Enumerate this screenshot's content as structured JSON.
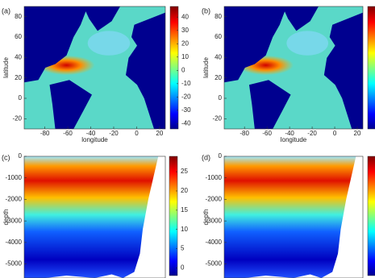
{
  "chart_data": [
    {
      "type": "heatmap",
      "label": "(a)",
      "xlabel": "longitude",
      "ylabel": "latitude",
      "xlim": [
        -98,
        25
      ],
      "xticks": [
        -80,
        -60,
        -40,
        -20,
        0,
        20
      ],
      "ylim": [
        -30,
        90
      ],
      "yticks": [
        80,
        60,
        40,
        20,
        0,
        -20
      ],
      "colorbar": {
        "lim": [
          -44,
          48
        ],
        "ticks": [
          40,
          30,
          20,
          10,
          0,
          -10,
          -20,
          -30,
          -40
        ]
      }
    },
    {
      "type": "heatmap",
      "label": "(b)",
      "xlabel": "longitude",
      "ylabel": "latitude",
      "xlim": [
        -98,
        25
      ],
      "xticks": [
        -80,
        -60,
        -40,
        -20,
        0,
        20
      ],
      "ylim": [
        -30,
        90
      ],
      "yticks": [
        80,
        60,
        40,
        20,
        0,
        -20
      ]
    },
    {
      "type": "heatmap",
      "label": "(c)",
      "ylabel": "depth",
      "ylim": [
        -5650,
        0
      ],
      "yticks": [
        0,
        -1000,
        -2000,
        -3000,
        -4000,
        -5000
      ],
      "colorbar": {
        "lim": [
          -2,
          29
        ],
        "ticks": [
          25,
          20,
          15,
          10,
          5,
          0
        ]
      }
    },
    {
      "type": "heatmap",
      "label": "(d)",
      "ylabel": "depth",
      "ylim": [
        -5650,
        0
      ],
      "yticks": [
        0,
        -1000,
        -2000,
        -3000,
        -4000,
        -5000
      ]
    }
  ]
}
